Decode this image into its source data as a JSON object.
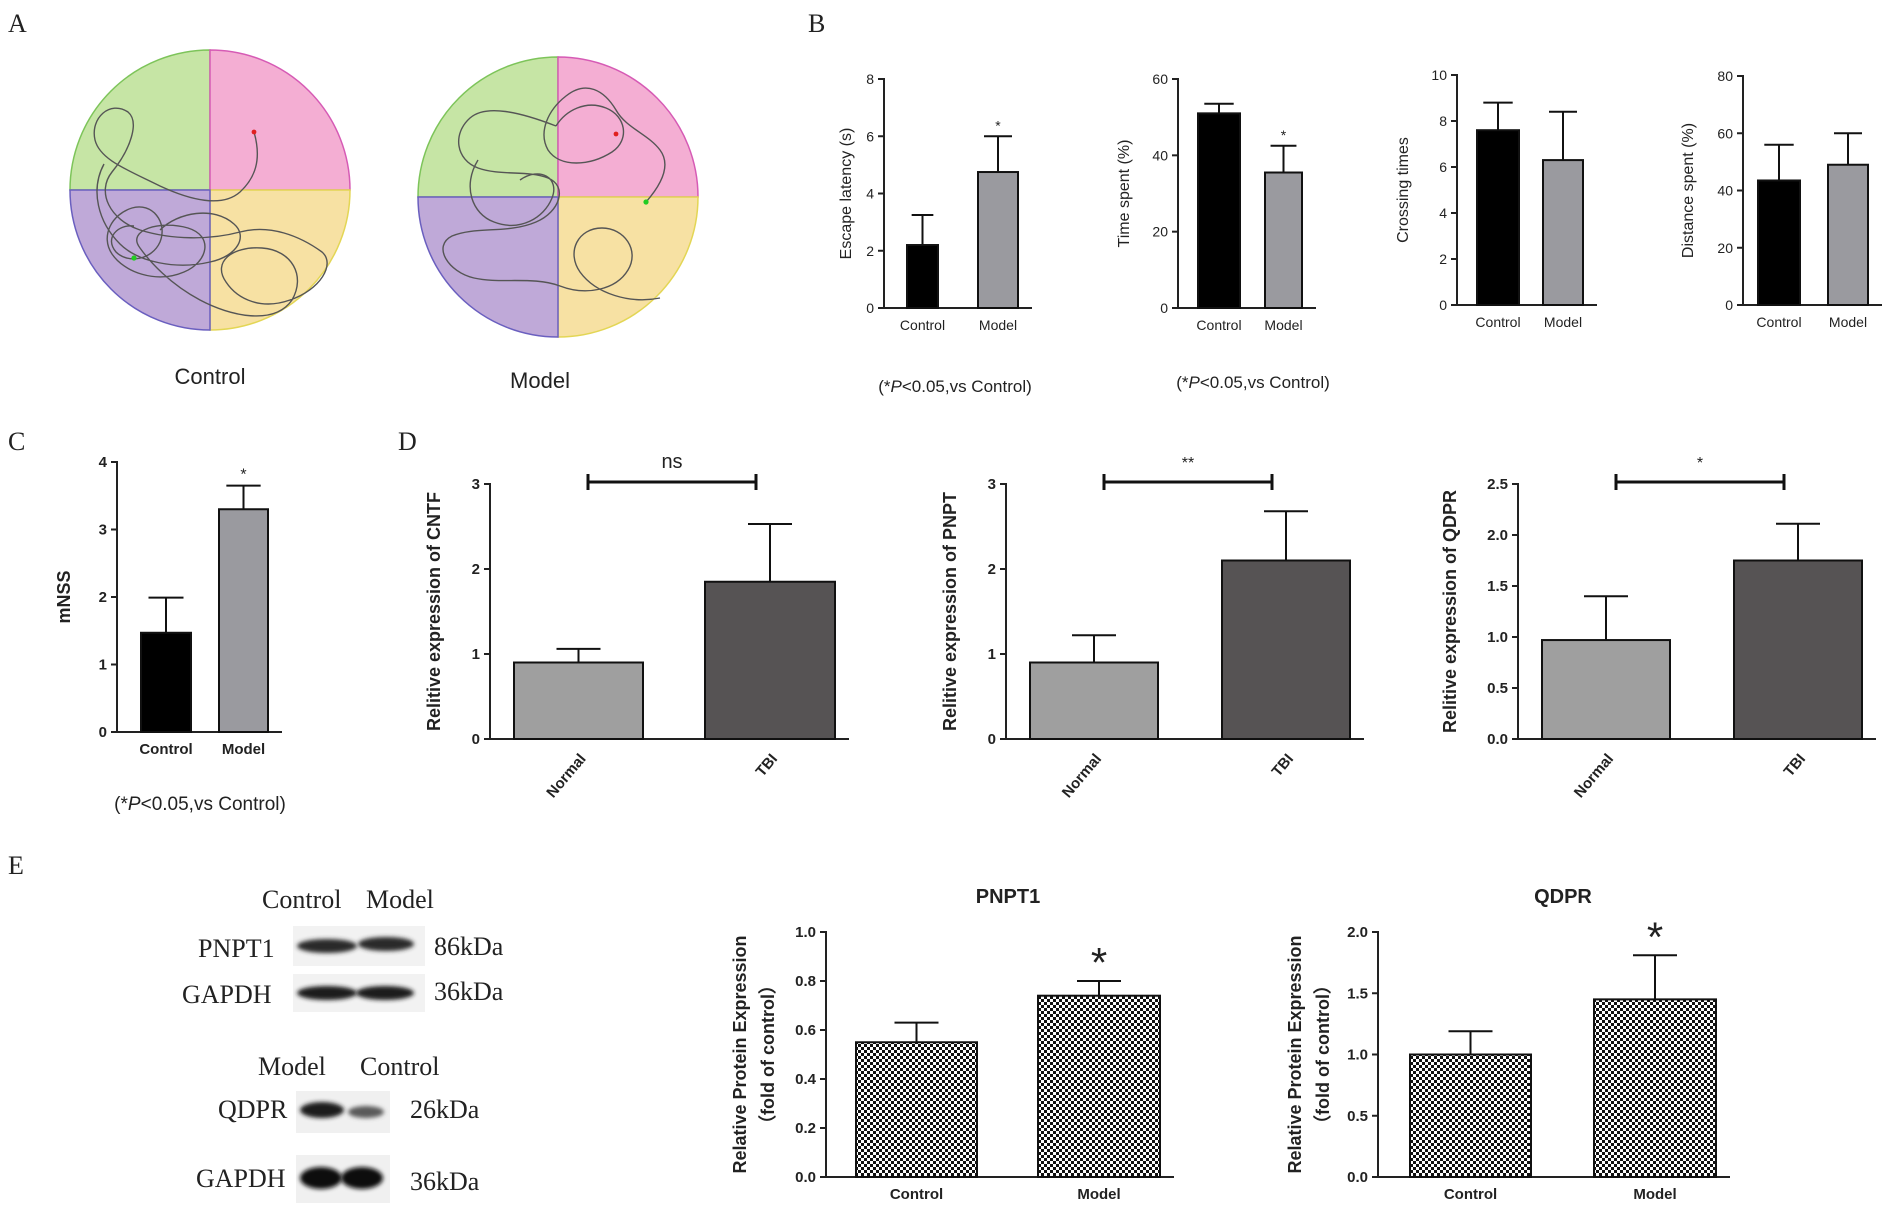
{
  "panel_labels": {
    "a": "A",
    "b": "B",
    "c": "C",
    "d": "D",
    "e": "E"
  },
  "panel_a": {
    "captions": [
      "Control",
      "Model"
    ],
    "colors": {
      "nw": "#c6e5a5",
      "ne": "#f4aed3",
      "sw": "#bfa9d8",
      "se": "#f7e1a3",
      "rim_nw": "#7dc45a",
      "rim_ne": "#d65bb5",
      "rim_sw": "#6a5fbf",
      "rim_se": "#e3d655"
    }
  },
  "panel_b_note": "(*P<0.05,vs Control)",
  "panel_b_note_parts": {
    "open": "(*",
    "p": "P",
    "rest": "<0.05,vs Control)"
  },
  "panel_c_note_parts": {
    "open": "(*",
    "p": "P",
    "rest": "<0.05,vs Control)"
  },
  "wb": {
    "row1_header": [
      "Control",
      "Model"
    ],
    "row1_labels": [
      "PNPT1",
      "GAPDH"
    ],
    "row1_sizes": [
      "86kDa",
      "36kDa"
    ],
    "row2_header": [
      "Model",
      "Control"
    ],
    "row2_labels": [
      "QDPR",
      "GAPDH"
    ],
    "row2_sizes": [
      "26kDa",
      "36kDa"
    ]
  },
  "chart_data": [
    {
      "id": "b1",
      "type": "bar",
      "title": "",
      "ylabel": "Escape latency (s)",
      "xlabel": "",
      "categories": [
        "Control",
        "Model"
      ],
      "values": [
        2.2,
        4.75
      ],
      "errors": [
        1.05,
        1.25
      ],
      "ylim": [
        0,
        8
      ],
      "yticks": [
        0,
        2,
        4,
        6,
        8
      ],
      "annotations": [
        "",
        "*"
      ],
      "colors": [
        "#000000",
        "#9a9a9f"
      ]
    },
    {
      "id": "b2",
      "type": "bar",
      "title": "",
      "ylabel": "Time  spent (%)",
      "xlabel": "",
      "categories": [
        "Control",
        "Model"
      ],
      "values": [
        51,
        35.5
      ],
      "errors": [
        2.5,
        7
      ],
      "ylim": [
        0,
        60
      ],
      "yticks": [
        0,
        20,
        40,
        60
      ],
      "annotations": [
        "",
        "*"
      ],
      "colors": [
        "#000000",
        "#9a9a9f"
      ]
    },
    {
      "id": "b3",
      "type": "bar",
      "title": "",
      "ylabel": "Crossing  times",
      "xlabel": "",
      "categories": [
        "Control",
        "Model"
      ],
      "values": [
        7.6,
        6.3
      ],
      "errors": [
        1.2,
        2.1
      ],
      "ylim": [
        0,
        10
      ],
      "yticks": [
        0,
        2,
        4,
        6,
        8,
        10
      ],
      "annotations": [
        "",
        ""
      ],
      "colors": [
        "#000000",
        "#9a9a9f"
      ]
    },
    {
      "id": "b4",
      "type": "bar",
      "title": "",
      "ylabel": "Distance  spent (%)",
      "xlabel": "",
      "categories": [
        "Control",
        "Model"
      ],
      "values": [
        43.5,
        49
      ],
      "errors": [
        12.5,
        11
      ],
      "ylim": [
        0,
        80
      ],
      "yticks": [
        0,
        20,
        40,
        60,
        80
      ],
      "annotations": [
        "",
        ""
      ],
      "colors": [
        "#000000",
        "#9a9a9f"
      ]
    },
    {
      "id": "c",
      "type": "bar",
      "title": "",
      "ylabel": "mNSS",
      "xlabel": "",
      "categories": [
        "Control",
        "Model"
      ],
      "values": [
        1.47,
        3.3
      ],
      "errors": [
        0.52,
        0.35
      ],
      "ylim": [
        0,
        4
      ],
      "yticks": [
        0,
        1,
        2,
        3,
        4
      ],
      "annotations": [
        "",
        "*"
      ],
      "colors": [
        "#000000",
        "#9a9a9f"
      ]
    },
    {
      "id": "d1",
      "type": "bar",
      "title": "",
      "ylabel": "Relitive expression of CNTF",
      "xlabel": "",
      "categories": [
        "Normal",
        "TBI"
      ],
      "values": [
        0.9,
        1.85
      ],
      "errors": [
        0.16,
        0.68
      ],
      "ylim": [
        0,
        3
      ],
      "yticks": [
        0,
        1,
        2,
        3
      ],
      "significance": "ns",
      "colors": [
        "#9f9f9f",
        "#565354"
      ]
    },
    {
      "id": "d2",
      "type": "bar",
      "title": "",
      "ylabel": "Relitive expression of PNPT",
      "xlabel": "",
      "categories": [
        "Normal",
        "TBI"
      ],
      "values": [
        0.9,
        2.1
      ],
      "errors": [
        0.32,
        0.58
      ],
      "ylim": [
        0,
        3
      ],
      "yticks": [
        0,
        1,
        2,
        3
      ],
      "significance": "**",
      "colors": [
        "#9f9f9f",
        "#565354"
      ]
    },
    {
      "id": "d3",
      "type": "bar",
      "title": "",
      "ylabel": "Relitive expression of QDPR",
      "xlabel": "",
      "categories": [
        "Normal",
        "TBI"
      ],
      "values": [
        0.97,
        1.75
      ],
      "errors": [
        0.43,
        0.36
      ],
      "ylim": [
        0,
        2.5
      ],
      "yticks": [
        "0.0",
        "0.5",
        "1.0",
        "1.5",
        "2.0",
        "2.5"
      ],
      "significance": "*",
      "colors": [
        "#9f9f9f",
        "#565354"
      ]
    },
    {
      "id": "e1",
      "type": "bar",
      "title": "PNPT1",
      "ylabel": "Relative Protein Expression",
      "ylabel2": "（fold of control）",
      "xlabel": "",
      "categories": [
        "Control",
        "Model"
      ],
      "values": [
        0.55,
        0.74
      ],
      "errors": [
        0.08,
        0.06
      ],
      "ylim": [
        0,
        1.0
      ],
      "yticks": [
        "0.0",
        "0.2",
        "0.4",
        "0.6",
        "0.8",
        "1.0"
      ],
      "annotations": [
        "",
        "*"
      ]
    },
    {
      "id": "e2",
      "type": "bar",
      "title": "QDPR",
      "ylabel": "Relative Protein Expression",
      "ylabel2": "（fold of control）",
      "xlabel": "",
      "categories": [
        "Control",
        "Model"
      ],
      "values": [
        1.0,
        1.45
      ],
      "errors": [
        0.19,
        0.36
      ],
      "ylim": [
        0,
        2.0
      ],
      "yticks": [
        "0.0",
        "0.5",
        "1.0",
        "1.5",
        "2.0"
      ],
      "annotations": [
        "",
        "*"
      ]
    }
  ]
}
